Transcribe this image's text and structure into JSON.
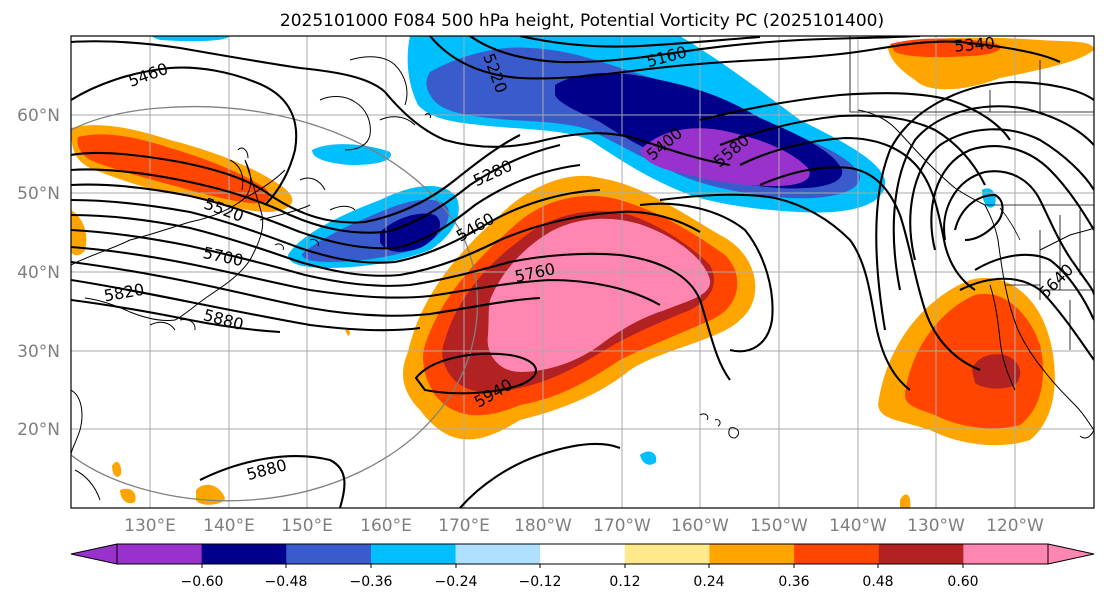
{
  "title": "2025101000 F084 500 hPa height, Potential Vorticity PC (2025101400)",
  "map": {
    "lat_ticks": [
      "60°N",
      "50°N",
      "40°N",
      "30°N",
      "20°N"
    ],
    "lon_ticks": [
      "130°E",
      "140°E",
      "150°E",
      "160°E",
      "170°E",
      "180°W",
      "170°W",
      "160°W",
      "150°W",
      "140°W",
      "130°W",
      "120°W"
    ],
    "contour_labels": [
      "5460",
      "5220",
      "5160",
      "5340",
      "5400",
      "5580",
      "5280",
      "5520",
      "5460",
      "5760",
      "5700",
      "5820",
      "5880",
      "5940",
      "5880",
      "5640"
    ]
  },
  "colorbar": {
    "ticks": [
      "−0.60",
      "−0.48",
      "−0.36",
      "−0.24",
      "−0.12",
      "0.12",
      "0.24",
      "0.36",
      "0.48",
      "0.60"
    ],
    "colors": [
      "#9932cc",
      "#00008b",
      "#3a5bcc",
      "#00bfff",
      "#b0e0ff",
      "#ffffff",
      "#ffe98a",
      "#ffa500",
      "#ff4500",
      "#b22222",
      "#ff86b0"
    ]
  }
}
